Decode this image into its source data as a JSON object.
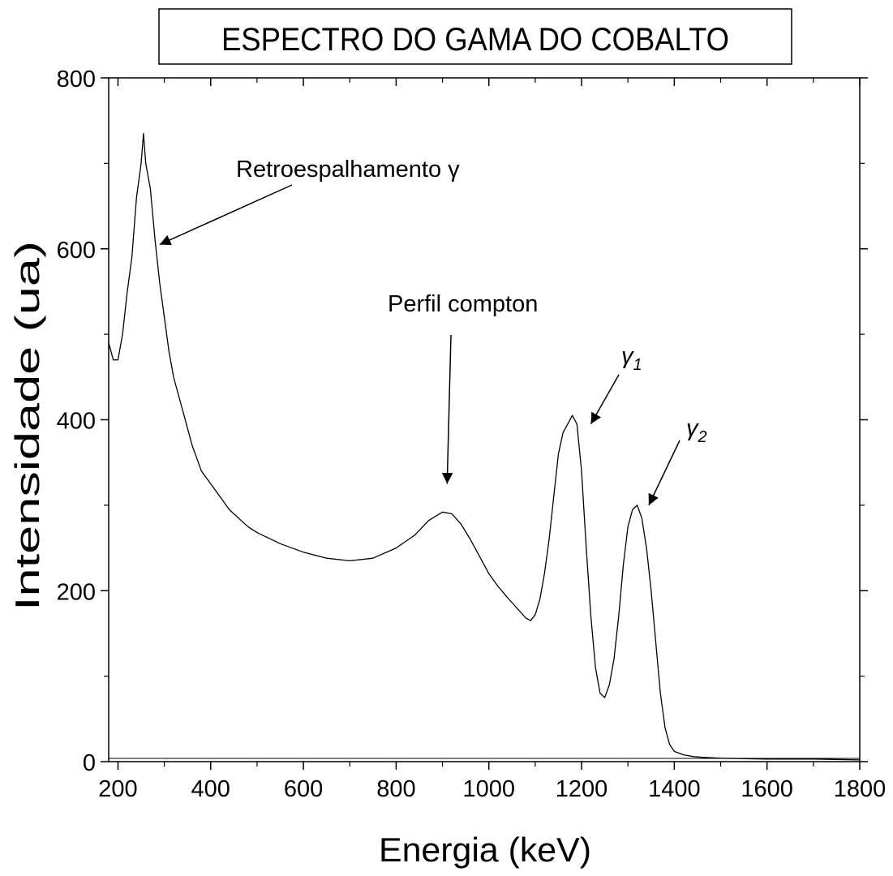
{
  "chart_data": {
    "type": "line",
    "title": "ESPECTRO DO GAMA DO COBALTO",
    "xlabel": "Energia (keV)",
    "ylabel": "Intensidade (ua)",
    "xlim": [
      180,
      1800
    ],
    "ylim": [
      0,
      800
    ],
    "xticks": [
      200,
      400,
      600,
      800,
      1000,
      1200,
      1400,
      1600,
      1800
    ],
    "yticks": [
      0,
      200,
      400,
      600,
      800
    ],
    "grid": false,
    "legend": "none",
    "line_color": "#000000",
    "series": [
      {
        "points": [
          [
            180,
            490
          ],
          [
            190,
            470
          ],
          [
            200,
            470
          ],
          [
            210,
            500
          ],
          [
            220,
            550
          ],
          [
            230,
            590
          ],
          [
            240,
            660
          ],
          [
            250,
            700
          ],
          [
            255,
            735
          ],
          [
            260,
            700
          ],
          [
            270,
            670
          ],
          [
            280,
            610
          ],
          [
            290,
            560
          ],
          [
            300,
            520
          ],
          [
            310,
            480
          ],
          [
            320,
            450
          ],
          [
            340,
            410
          ],
          [
            360,
            370
          ],
          [
            380,
            340
          ],
          [
            400,
            325
          ],
          [
            420,
            310
          ],
          [
            440,
            295
          ],
          [
            460,
            285
          ],
          [
            480,
            275
          ],
          [
            500,
            268
          ],
          [
            550,
            255
          ],
          [
            600,
            245
          ],
          [
            650,
            238
          ],
          [
            700,
            235
          ],
          [
            750,
            238
          ],
          [
            800,
            250
          ],
          [
            840,
            265
          ],
          [
            870,
            282
          ],
          [
            900,
            292
          ],
          [
            920,
            290
          ],
          [
            940,
            278
          ],
          [
            960,
            260
          ],
          [
            980,
            240
          ],
          [
            1000,
            220
          ],
          [
            1020,
            205
          ],
          [
            1040,
            192
          ],
          [
            1060,
            180
          ],
          [
            1080,
            168
          ],
          [
            1090,
            165
          ],
          [
            1100,
            172
          ],
          [
            1110,
            190
          ],
          [
            1120,
            220
          ],
          [
            1130,
            260
          ],
          [
            1140,
            310
          ],
          [
            1150,
            360
          ],
          [
            1160,
            385
          ],
          [
            1170,
            395
          ],
          [
            1180,
            405
          ],
          [
            1190,
            395
          ],
          [
            1200,
            340
          ],
          [
            1210,
            250
          ],
          [
            1220,
            170
          ],
          [
            1230,
            110
          ],
          [
            1240,
            80
          ],
          [
            1250,
            75
          ],
          [
            1260,
            90
          ],
          [
            1270,
            120
          ],
          [
            1280,
            170
          ],
          [
            1290,
            230
          ],
          [
            1300,
            275
          ],
          [
            1310,
            295
          ],
          [
            1320,
            300
          ],
          [
            1330,
            285
          ],
          [
            1340,
            250
          ],
          [
            1350,
            200
          ],
          [
            1360,
            140
          ],
          [
            1370,
            80
          ],
          [
            1380,
            40
          ],
          [
            1390,
            20
          ],
          [
            1400,
            12
          ],
          [
            1420,
            8
          ],
          [
            1440,
            6
          ],
          [
            1460,
            5
          ],
          [
            1500,
            4
          ],
          [
            1600,
            3
          ],
          [
            1700,
            3
          ],
          [
            1800,
            2
          ]
        ]
      }
    ],
    "annotations": [
      {
        "text": "Retroespalhamento γ",
        "x": 300,
        "y": 690,
        "arrow_to": [
          290,
          605
        ]
      },
      {
        "text": "Perfil compton",
        "x": 910,
        "y": 525,
        "arrow_to": [
          910,
          325
        ]
      },
      {
        "text": "γ",
        "sub": "1",
        "x": 1270,
        "y": 460,
        "arrow_to": [
          1220,
          395
        ]
      },
      {
        "text": "γ",
        "sub": "2",
        "x": 1380,
        "y": 385,
        "arrow_to": [
          1345,
          300
        ]
      }
    ]
  }
}
